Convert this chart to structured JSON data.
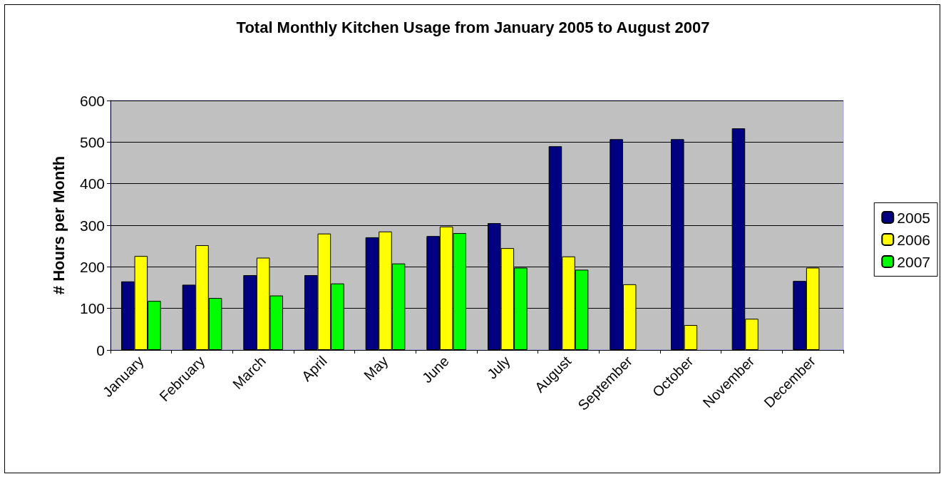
{
  "chart_data": {
    "type": "bar",
    "title": "Total Monthly Kitchen Usage from January 2005 to August 2007",
    "ylabel": "# Hours per Month",
    "categories": [
      "January",
      "February",
      "March",
      "April",
      "May",
      "June",
      "July",
      "August",
      "September",
      "October",
      "November",
      "December"
    ],
    "series": [
      {
        "name": "2005",
        "color": "#000080",
        "values": [
          165,
          157,
          180,
          180,
          271,
          274,
          305,
          490,
          507,
          507,
          533,
          166
        ]
      },
      {
        "name": "2006",
        "color": "#ffff00",
        "values": [
          226,
          252,
          222,
          280,
          285,
          297,
          245,
          225,
          158,
          60,
          75,
          198
        ]
      },
      {
        "name": "2007",
        "color": "#00ff00",
        "values": [
          118,
          125,
          131,
          160,
          208,
          281,
          198,
          193,
          null,
          null,
          null,
          null
        ]
      }
    ],
    "ylim": [
      0,
      600
    ],
    "yticks": [
      0,
      100,
      200,
      300,
      400,
      500,
      600
    ],
    "grid": "y",
    "legend": "right"
  }
}
